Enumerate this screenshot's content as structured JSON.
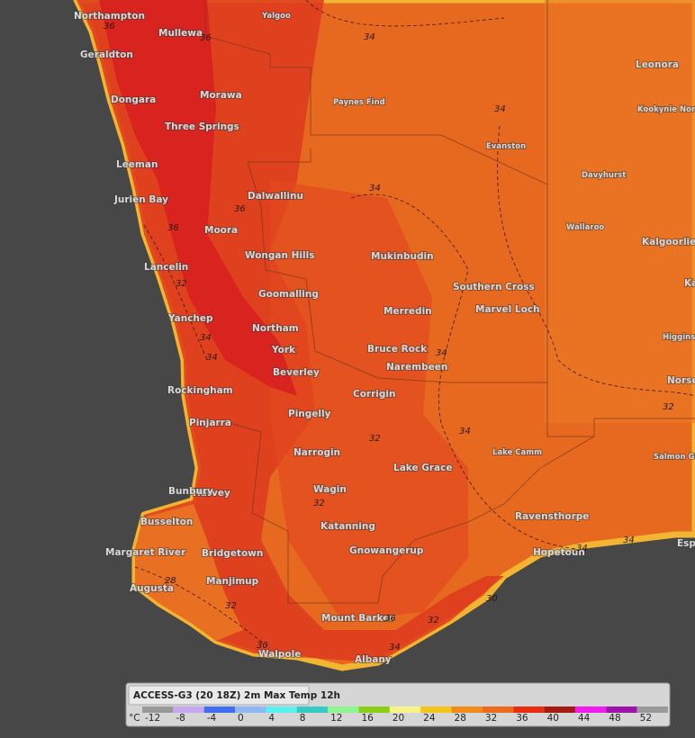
{
  "towns": [
    "Northampton",
    "Mullewa",
    "Yalgoo",
    "Geraldton",
    "Morawa",
    "Dongara",
    "Paynes Find",
    "Three Springs",
    "Leonora",
    "Kookynie North",
    "Evanston",
    "Leeman",
    "Davyhurst",
    "Dalwallinu",
    "Jurien Bay",
    "Wallaroo",
    "Moora",
    "Kalgoorlie",
    "Wongan Hills",
    "Mukinbudin",
    "Lancelin",
    "Kambalda",
    "Goomalling",
    "Southern Cross",
    "Merredin",
    "Marvel Loch",
    "Yanchep",
    "Northam",
    "Higginsville",
    "York",
    "Bruce Rock",
    "Norseman",
    "Beverley",
    "Narembeen",
    "Rockingham",
    "Corrigin",
    "Pingelly",
    "Pinjarra",
    "Lake Camm",
    "Narrogin",
    "Harvey",
    "Salmon Gums",
    "Lake Grace",
    "Bunbury",
    "Wagin",
    "Busselton",
    "Ravensthorpe",
    "Katanning",
    "Margaret River",
    "Bridgetown",
    "Gnowangerup",
    "Hopetoun",
    "Esperance",
    "Augusta",
    "Manjimup",
    "Mount Barker",
    "Walpole",
    "Albany"
  ],
  "contour_labels": [
    36,
    36,
    34,
    34,
    34,
    36,
    36,
    32,
    34,
    34,
    34,
    32,
    34,
    32,
    28,
    32,
    30,
    36,
    34,
    34,
    32,
    34,
    30,
    32
  ],
  "legend": {
    "title": "ACCESS-G3 (20 18Z) 2m Max Temp 12h",
    "unit": "°C",
    "ticks": [
      -12,
      -8,
      -4,
      0,
      4,
      8,
      12,
      16,
      20,
      24,
      28,
      32,
      36,
      40,
      44,
      48,
      52
    ],
    "colors": [
      "#9a9a9a",
      "#c7a6f2",
      "#3f6ff0",
      "#8fb6f5",
      "#5cf1f1",
      "#37c9c4",
      "#8ff58f",
      "#8ccd16",
      "#f7f58a",
      "#f6c51b",
      "#f08c1c",
      "#ea6c1c",
      "#e82d12",
      "#a31a12",
      "#f01cf0",
      "#9c14a8",
      "#9a9a9a"
    ]
  }
}
